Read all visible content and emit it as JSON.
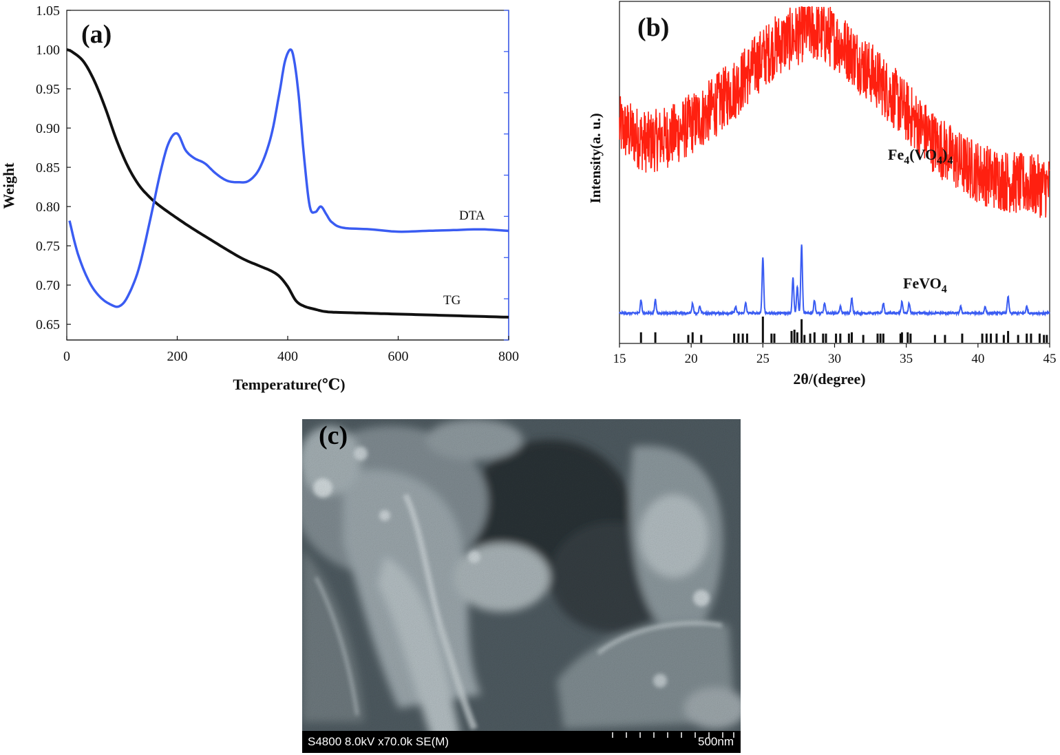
{
  "panel_labels": {
    "a": "(a)",
    "b": "(b)",
    "c": "(c)"
  },
  "chart_data": [
    {
      "type": "line",
      "panel": "(a)",
      "xlabel": "Temperature(℃)",
      "ylabel": "Weight",
      "xlim": [
        0,
        800
      ],
      "ylim": [
        0.63,
        1.05
      ],
      "x_ticks": [
        "0",
        "200",
        "400",
        "600",
        "800"
      ],
      "y_ticks": [
        "0.65",
        "0.70",
        "0.75",
        "0.80",
        "0.85",
        "0.90",
        "0.95",
        "1.00",
        "1.05"
      ],
      "colors": {
        "TG": "#111111",
        "DTA": "#3a5cf2"
      },
      "series": [
        {
          "name": "TG",
          "x": [
            0,
            10,
            30,
            50,
            70,
            90,
            110,
            130,
            150,
            170,
            200,
            230,
            260,
            290,
            320,
            350,
            370,
            385,
            400,
            415,
            430,
            450,
            470,
            500,
            550,
            600,
            650,
            700,
            750,
            800
          ],
          "y": [
            1.0,
            0.997,
            0.985,
            0.96,
            0.925,
            0.885,
            0.852,
            0.828,
            0.812,
            0.8,
            0.785,
            0.771,
            0.758,
            0.745,
            0.733,
            0.724,
            0.718,
            0.711,
            0.698,
            0.68,
            0.673,
            0.669,
            0.666,
            0.665,
            0.664,
            0.663,
            0.662,
            0.661,
            0.66,
            0.659
          ]
        },
        {
          "name": "DTA",
          "x": [
            5,
            20,
            40,
            60,
            80,
            95,
            110,
            130,
            150,
            170,
            185,
            200,
            215,
            230,
            250,
            270,
            290,
            310,
            330,
            350,
            370,
            385,
            395,
            405,
            412,
            420,
            430,
            440,
            450,
            460,
            470,
            480,
            500,
            550,
            600,
            650,
            700,
            750,
            800
          ],
          "y": [
            0.782,
            0.74,
            0.705,
            0.685,
            0.675,
            0.673,
            0.685,
            0.72,
            0.78,
            0.845,
            0.882,
            0.893,
            0.872,
            0.862,
            0.855,
            0.842,
            0.833,
            0.831,
            0.833,
            0.85,
            0.89,
            0.945,
            0.985,
            1.0,
            0.985,
            0.94,
            0.86,
            0.8,
            0.793,
            0.8,
            0.79,
            0.78,
            0.773,
            0.771,
            0.768,
            0.769,
            0.77,
            0.771,
            0.769
          ]
        }
      ],
      "annotations": [
        "DTA",
        "TG"
      ]
    },
    {
      "type": "line",
      "panel": "(b)",
      "xlabel": "2θ/(degree)",
      "ylabel": "Intensity(a. u.)",
      "xlim": [
        15,
        45
      ],
      "x_ticks": [
        "15",
        "20",
        "25",
        "30",
        "35",
        "40",
        "45"
      ],
      "colors": {
        "Fe4(VO4)4": "#ff2010",
        "FeVO4": "#3a5cf2",
        "reference": "#111111"
      },
      "series": [
        {
          "name": "Fe4(VO4)4",
          "x": [
            15,
            17,
            19,
            21,
            23,
            25,
            26,
            27,
            28,
            29,
            30,
            31,
            33,
            35,
            37,
            39,
            41,
            43,
            45
          ],
          "y": [
            0.62,
            0.57,
            0.6,
            0.66,
            0.74,
            0.84,
            0.88,
            0.9,
            0.93,
            0.92,
            0.9,
            0.86,
            0.77,
            0.67,
            0.57,
            0.5,
            0.46,
            0.44,
            0.43
          ],
          "sharp_peak": {
            "x": 28.2,
            "y": 1.0
          }
        },
        {
          "name": "FeVO4",
          "peaks_x": [
            16.5,
            17.5,
            20.1,
            20.6,
            23.1,
            23.8,
            25.0,
            27.1,
            27.4,
            27.7,
            28.6,
            29.3,
            30.4,
            31.2,
            33.4,
            34.7,
            35.2,
            38.8,
            40.5,
            42.1,
            43.4
          ],
          "peaks_height": [
            0.04,
            0.04,
            0.03,
            0.02,
            0.02,
            0.03,
            0.17,
            0.11,
            0.08,
            0.21,
            0.04,
            0.03,
            0.02,
            0.045,
            0.03,
            0.035,
            0.03,
            0.02,
            0.02,
            0.05,
            0.02
          ]
        },
        {
          "name": "reference",
          "lines_x": [
            16.5,
            17.5,
            19.8,
            20.1,
            20.7,
            23.0,
            23.3,
            23.6,
            23.9,
            25.0,
            25.6,
            25.8,
            27.0,
            27.2,
            27.4,
            27.7,
            27.9,
            28.3,
            28.6,
            29.2,
            29.4,
            30.1,
            30.4,
            31.0,
            31.2,
            32.0,
            33.0,
            33.2,
            33.4,
            34.6,
            34.7,
            35.1,
            35.3,
            37.0,
            37.7,
            38.9,
            40.3,
            40.6,
            40.9,
            41.3,
            41.8,
            42.1,
            42.8,
            43.4,
            43.7,
            44.3,
            44.6,
            44.8
          ],
          "lines_h": [
            0.4,
            0.4,
            0.3,
            0.4,
            0.3,
            0.35,
            0.35,
            0.35,
            0.35,
            1.0,
            0.35,
            0.35,
            0.45,
            0.5,
            0.4,
            0.9,
            0.3,
            0.35,
            0.4,
            0.35,
            0.35,
            0.35,
            0.35,
            0.35,
            0.4,
            0.3,
            0.35,
            0.35,
            0.35,
            0.35,
            0.4,
            0.4,
            0.35,
            0.3,
            0.3,
            0.35,
            0.35,
            0.35,
            0.35,
            0.35,
            0.3,
            0.45,
            0.3,
            0.35,
            0.35,
            0.35,
            0.3,
            0.3
          ]
        }
      ],
      "annotations": [
        "Fe4(VO4)4",
        "FeVO4"
      ]
    }
  ],
  "sem": {
    "info": "S4800 8.0kV x70.0k SE(M)",
    "scale": "500nm"
  }
}
